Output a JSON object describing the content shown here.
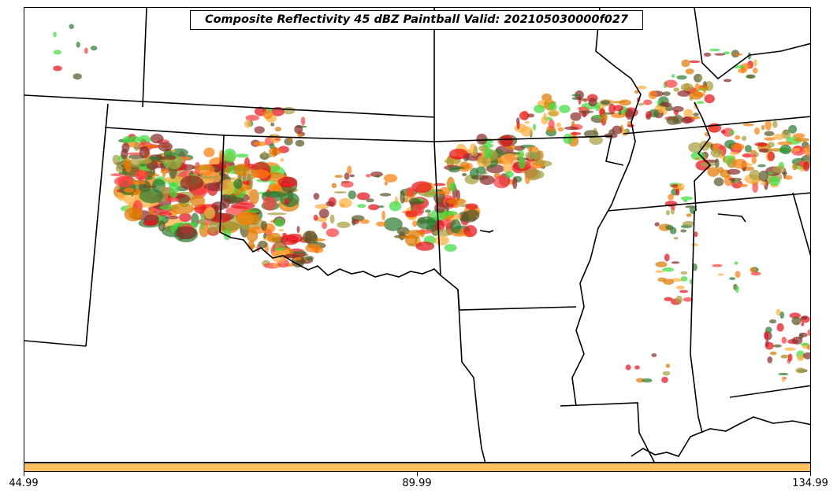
{
  "title": "Composite Reflectivity 45 dBZ Paintball Valid: 202105030000f027",
  "colorbar": {
    "color": "#ffc061",
    "ticks": [
      "44.99",
      "89.99",
      "134.99"
    ]
  },
  "colors": {
    "boundaries": "#000000",
    "members": [
      "#e8141c",
      "#ff7f0e",
      "#e07a00",
      "#8c2d2d",
      "#2e7d32",
      "#3ddc3d",
      "#a8a040",
      "#5a5a28",
      "#ff4040",
      "#ffb040"
    ]
  }
}
